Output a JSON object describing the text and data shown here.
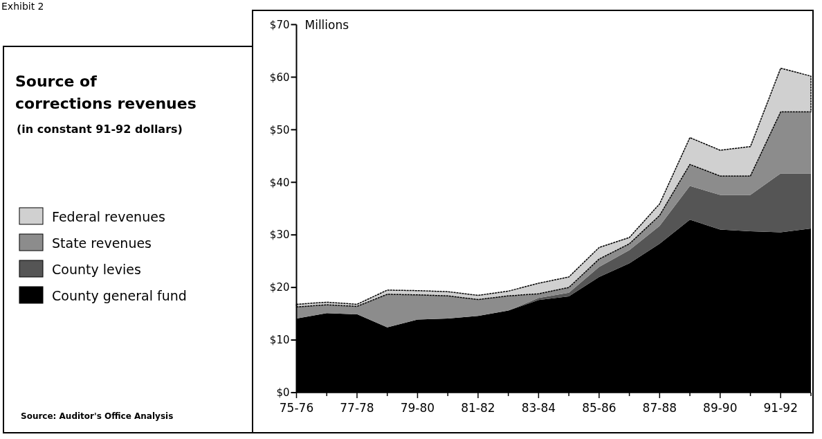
{
  "chart_data": {
    "type": "area",
    "stacked": true,
    "title": "Source of corrections revenues",
    "subtitle": "(in constant 91-92 dollars)",
    "ylabel": "Millions",
    "categories": [
      "75-76",
      null,
      "77-78",
      null,
      "79-80",
      null,
      "81-82",
      null,
      "83-84",
      null,
      "85-86",
      null,
      "87-88",
      null,
      "89-90",
      null,
      "91-92",
      null
    ],
    "series": [
      {
        "name": "County general fund",
        "color": "#000000",
        "values": [
          14.1,
          15.1,
          14.9,
          12.4,
          13.9,
          14.1,
          14.6,
          15.6,
          17.6,
          18.3,
          22.0,
          24.6,
          28.3,
          32.9,
          31.0,
          30.7,
          30.5,
          31.2
        ]
      },
      {
        "name": "County levies",
        "color": "#555555",
        "values": [
          0,
          0,
          0,
          0,
          0,
          0,
          0,
          0,
          0.4,
          0.7,
          1.9,
          2.5,
          3.4,
          6.4,
          6.6,
          6.9,
          11.2,
          10.5
        ]
      },
      {
        "name": "State revenues",
        "color": "#8c8c8c",
        "values": [
          2.2,
          1.6,
          1.5,
          6.3,
          4.7,
          4.3,
          3.1,
          2.8,
          0.8,
          1.0,
          1.5,
          1.2,
          2.0,
          4.1,
          3.6,
          3.6,
          11.7,
          11.7
        ]
      },
      {
        "name": "Federal revenues",
        "color": "#d0d0d0",
        "values": [
          0.5,
          0.5,
          0.4,
          0.8,
          0.8,
          0.8,
          0.8,
          0.9,
          2.0,
          2.0,
          2.2,
          1.2,
          2.2,
          5.1,
          4.9,
          5.6,
          8.3,
          6.8
        ]
      }
    ],
    "ylim": [
      0,
      70
    ],
    "yticks": [
      {
        "value": 0,
        "label": "$0"
      },
      {
        "value": 10,
        "label": "$10"
      },
      {
        "value": 20,
        "label": "$20"
      },
      {
        "value": 30,
        "label": "$30"
      },
      {
        "value": 40,
        "label": "$40"
      },
      {
        "value": 50,
        "label": "$50"
      },
      {
        "value": 60,
        "label": "$60"
      },
      {
        "value": 70,
        "label": "$70"
      }
    ],
    "legend": "left",
    "grid": false,
    "annotations": [
      "Exhibit 2",
      "Source: Auditor's Office Analysis"
    ]
  }
}
